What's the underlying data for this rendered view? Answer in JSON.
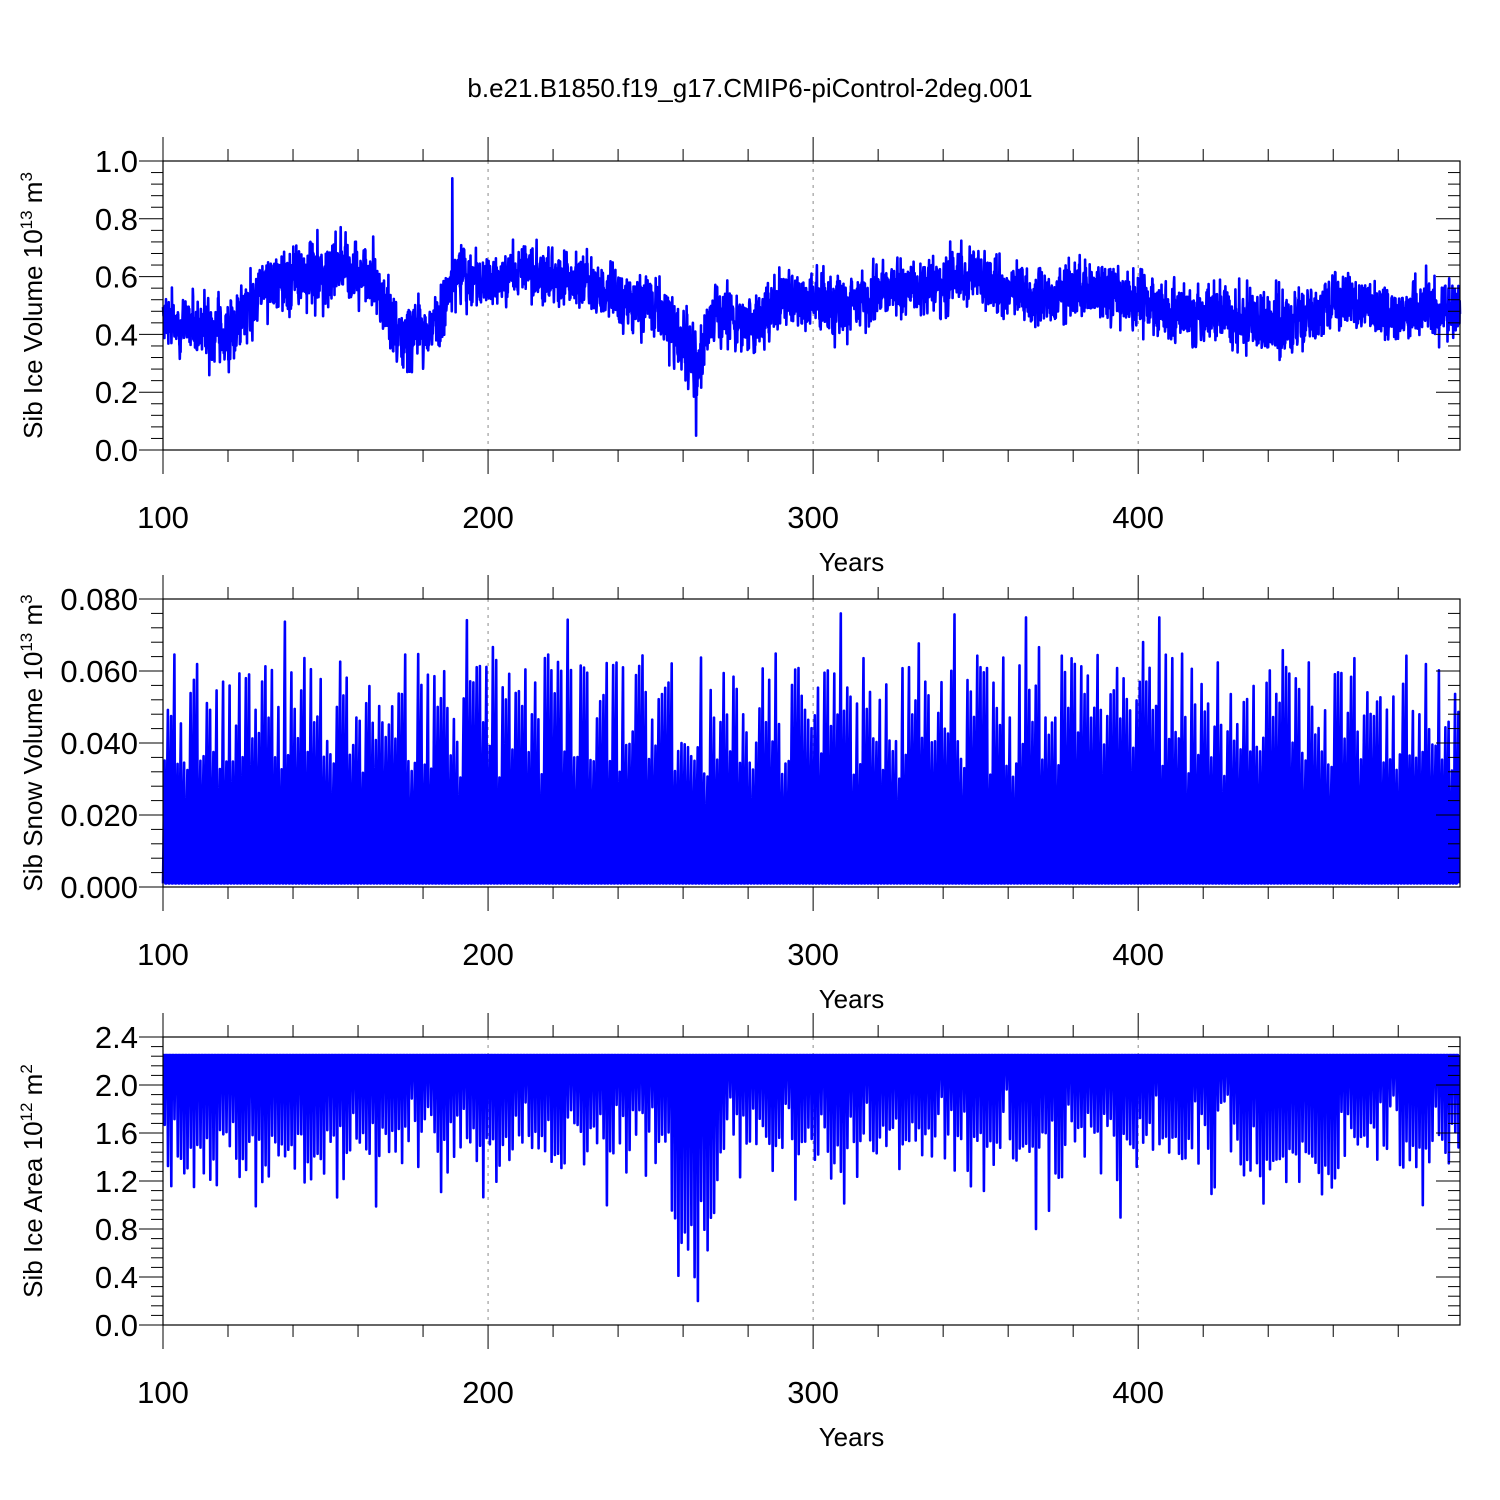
{
  "figure": {
    "title": "b.e21.B1850.f19_g17.CMIP6-piControl-2deg.001",
    "line_color": "#0000ff"
  },
  "chart_data": [
    {
      "type": "line",
      "title": "b.e21.B1850.f19_g17.CMIP6-piControl-2deg.001",
      "xlabel": "Years",
      "ylabel": {
        "text": "Sib Ice Volume 10",
        "sup": "13",
        "unit": " m",
        "unit_sup": "3"
      },
      "xlim": [
        100,
        499
      ],
      "ylim": [
        0.0,
        1.0
      ],
      "xticks": [
        "100",
        "200",
        "300",
        "400"
      ],
      "yticks": [
        "0.0",
        "0.2",
        "0.4",
        "0.6",
        "0.8",
        "1.0"
      ],
      "grid": "vertical dashed at major x ticks",
      "series": [
        {
          "name": "Sib Ice Volume",
          "color": "#0000ff",
          "sampling": "monthly, years 100-499",
          "envelope": {
            "years": [
              100,
              110,
              120,
              130,
              140,
              145,
              150,
              155,
              160,
              165,
              170,
              175,
              180,
              185,
              190,
              195,
              200,
              210,
              220,
              230,
              240,
              250,
              255,
              260,
              265,
              270,
              280,
              290,
              300,
              310,
              320,
              330,
              340,
              350,
              360,
              370,
              380,
              390,
              400,
              410,
              420,
              430,
              440,
              450,
              460,
              470,
              480,
              490,
              499
            ],
            "mean": [
              0.46,
              0.42,
              0.4,
              0.55,
              0.6,
              0.62,
              0.6,
              0.64,
              0.58,
              0.6,
              0.45,
              0.4,
              0.42,
              0.45,
              0.62,
              0.58,
              0.57,
              0.62,
              0.6,
              0.58,
              0.53,
              0.5,
              0.45,
              0.33,
              0.3,
              0.48,
              0.42,
              0.52,
              0.5,
              0.5,
              0.55,
              0.56,
              0.58,
              0.62,
              0.55,
              0.52,
              0.57,
              0.54,
              0.5,
              0.48,
              0.47,
              0.46,
              0.42,
              0.45,
              0.52,
              0.5,
              0.47,
              0.48,
              0.48
            ],
            "spread": [
              0.13,
              0.14,
              0.15,
              0.14,
              0.13,
              0.14,
              0.16,
              0.14,
              0.13,
              0.14,
              0.15,
              0.16,
              0.14,
              0.13,
              0.14,
              0.13,
              0.12,
              0.12,
              0.12,
              0.12,
              0.13,
              0.13,
              0.14,
              0.16,
              0.16,
              0.15,
              0.14,
              0.13,
              0.13,
              0.14,
              0.13,
              0.13,
              0.13,
              0.13,
              0.13,
              0.13,
              0.13,
              0.13,
              0.13,
              0.13,
              0.14,
              0.14,
              0.15,
              0.14,
              0.13,
              0.13,
              0.13,
              0.13,
              0.13
            ]
          },
          "extremes": {
            "max": 0.94,
            "max_year": 189,
            "min": 0.05,
            "min_year": 264
          }
        }
      ]
    },
    {
      "type": "line",
      "title": "",
      "xlabel": "Years",
      "ylabel": {
        "text": "Sib Snow Volume 10",
        "sup": "13",
        "unit": " m",
        "unit_sup": "3"
      },
      "xlim": [
        100,
        499
      ],
      "ylim": [
        0.0,
        0.08
      ],
      "xticks": [
        "100",
        "200",
        "300",
        "400"
      ],
      "yticks": [
        "0.000",
        "0.020",
        "0.040",
        "0.060",
        "0.080"
      ],
      "grid": "vertical dashed at major x ticks",
      "series": [
        {
          "name": "Sib Snow Volume",
          "color": "#0000ff",
          "sampling": "monthly, years 100-499, seasonal cycle",
          "annual_minimum": 0.001,
          "annual_peak": {
            "typical_range": [
              0.03,
              0.065
            ],
            "max": 0.076,
            "max_year": 308,
            "min": 0.03,
            "min_year": 262
          }
        }
      ]
    },
    {
      "type": "line",
      "title": "",
      "xlabel": "Years",
      "ylabel": {
        "text": "Sib Ice Area 10",
        "sup": "12",
        "unit": " m",
        "unit_sup": "2"
      },
      "xlim": [
        100,
        499
      ],
      "ylim": [
        0.0,
        2.4
      ],
      "xticks": [
        "100",
        "200",
        "300",
        "400"
      ],
      "yticks": [
        "0.0",
        "0.4",
        "0.8",
        "1.2",
        "1.6",
        "2.0",
        "2.4"
      ],
      "grid": "vertical dashed at major x ticks",
      "series": [
        {
          "name": "Sib Ice Area",
          "color": "#0000ff",
          "sampling": "monthly, years 100-499, seasonal cycle",
          "annual_maximum": 2.25,
          "annual_minimum": {
            "typical_range": [
              0.9,
              2.0
            ],
            "min": 0.2,
            "min_year": 264
          }
        }
      ]
    }
  ]
}
